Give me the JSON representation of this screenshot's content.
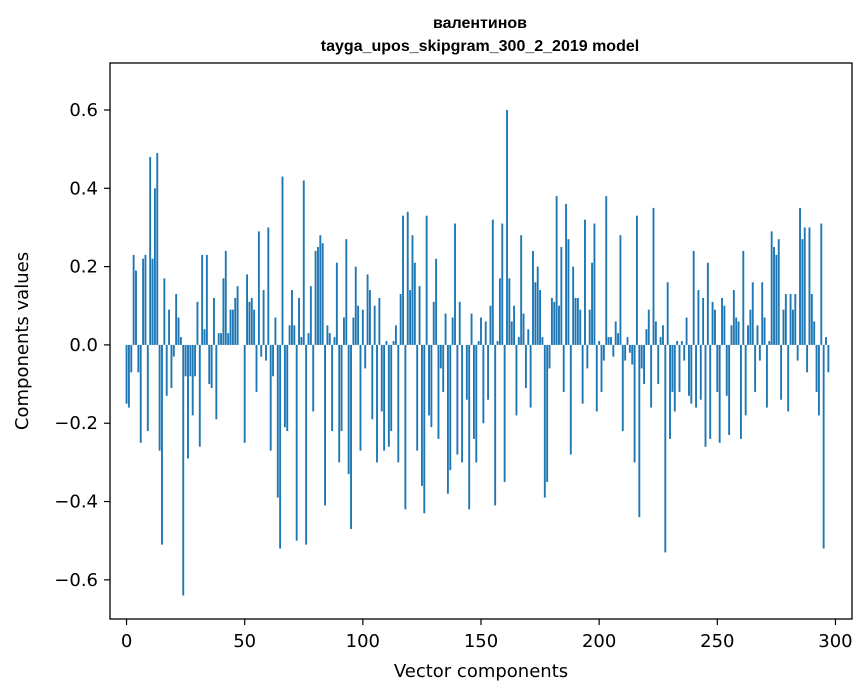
{
  "chart_data": {
    "type": "bar",
    "title": "валентинов",
    "subtitle": "tayga_upos_skipgram_300_2_2019 model",
    "xlabel": "Vector components",
    "ylabel": "Components values",
    "xlim": [
      -7,
      307
    ],
    "ylim": [
      -0.7,
      0.72
    ],
    "xticks": [
      0,
      50,
      100,
      150,
      200,
      250,
      300
    ],
    "xtick_labels": [
      "0",
      "50",
      "100",
      "150",
      "200",
      "250",
      "300"
    ],
    "yticks": [
      -0.6,
      -0.4,
      -0.2,
      0.0,
      0.2,
      0.4,
      0.6
    ],
    "ytick_labels": [
      "−0.6",
      "−0.4",
      "−0.2",
      "0.0",
      "0.2",
      "0.4",
      "0.6"
    ],
    "grid": false,
    "bar_color": "#1f77b4",
    "values": [
      -0.15,
      -0.16,
      -0.07,
      0.23,
      0.19,
      -0.07,
      -0.25,
      0.22,
      0.23,
      -0.22,
      0.48,
      0.22,
      0.4,
      0.49,
      -0.27,
      -0.51,
      0.17,
      -0.13,
      0.09,
      -0.11,
      -0.03,
      0.13,
      0.07,
      0.02,
      -0.64,
      -0.08,
      -0.29,
      -0.08,
      -0.18,
      -0.08,
      0.11,
      -0.26,
      0.23,
      0.04,
      0.23,
      -0.1,
      -0.11,
      0.12,
      -0.19,
      0.03,
      0.03,
      0.17,
      0.24,
      0.03,
      0.09,
      0.09,
      0.12,
      0.15,
      0.0,
      0.0,
      -0.25,
      0.18,
      0.11,
      0.12,
      0.09,
      -0.12,
      0.29,
      -0.03,
      0.14,
      -0.04,
      0.3,
      -0.27,
      -0.08,
      0.07,
      -0.39,
      -0.52,
      0.43,
      -0.21,
      -0.22,
      0.05,
      0.14,
      0.05,
      -0.5,
      0.12,
      0.02,
      0.42,
      -0.51,
      0.03,
      0.15,
      -0.17,
      0.24,
      0.25,
      0.28,
      0.26,
      -0.41,
      0.05,
      0.03,
      -0.22,
      0.02,
      0.21,
      -0.3,
      -0.22,
      0.07,
      0.27,
      -0.33,
      -0.47,
      0.07,
      0.2,
      0.1,
      -0.27,
      0.09,
      -0.06,
      0.18,
      0.14,
      -0.19,
      0.1,
      -0.3,
      0.12,
      -0.17,
      -0.27,
      0.01,
      -0.26,
      -0.22,
      0.01,
      0.05,
      -0.3,
      0.13,
      0.33,
      -0.42,
      0.34,
      0.14,
      0.28,
      0.21,
      -0.27,
      0.15,
      -0.36,
      -0.43,
      0.33,
      -0.18,
      -0.21,
      0.11,
      0.22,
      -0.24,
      -0.06,
      -0.12,
      0.08,
      -0.38,
      -0.32,
      0.07,
      0.31,
      -0.28,
      0.11,
      -0.3,
      0.0,
      -0.14,
      -0.42,
      0.08,
      -0.24,
      -0.3,
      0.01,
      0.07,
      -0.2,
      0.06,
      -0.14,
      0.1,
      0.32,
      -0.41,
      0.01,
      0.17,
      0.31,
      -0.35,
      0.6,
      0.17,
      0.06,
      0.1,
      -0.18,
      0.02,
      0.28,
      0.08,
      -0.11,
      0.04,
      -0.16,
      0.24,
      0.16,
      0.2,
      0.14,
      0.02,
      -0.39,
      -0.35,
      -0.06,
      0.12,
      0.11,
      0.38,
      0.1,
      0.25,
      -0.12,
      0.36,
      0.27,
      -0.28,
      0.2,
      0.12,
      0.12,
      0.09,
      -0.15,
      0.32,
      -0.06,
      0.09,
      0.21,
      0.31,
      -0.17,
      0.01,
      -0.12,
      -0.04,
      0.38,
      0.02,
      0.02,
      -0.03,
      0.06,
      0.03,
      0.28,
      -0.22,
      -0.04,
      0.02,
      -0.02,
      -0.05,
      -0.3,
      0.33,
      -0.44,
      -0.06,
      -0.1,
      0.04,
      0.09,
      -0.16,
      0.35,
      0.06,
      -0.1,
      0.02,
      0.05,
      -0.53,
      0.16,
      -0.24,
      -0.12,
      -0.17,
      0.01,
      -0.12,
      0.01,
      -0.04,
      0.07,
      -0.13,
      -0.15,
      0.24,
      -0.16,
      0.14,
      -0.14,
      0.12,
      -0.26,
      0.21,
      -0.24,
      0.11,
      0.09,
      -0.12,
      -0.25,
      0.12,
      0.1,
      -0.13,
      -0.23,
      0.05,
      0.14,
      0.07,
      0.06,
      -0.24,
      0.24,
      -0.18,
      0.05,
      0.09,
      0.16,
      -0.12,
      0.05,
      -0.04,
      0.16,
      0.07,
      -0.16,
      0.01,
      0.29,
      0.25,
      0.23,
      0.27,
      -0.14,
      0.09,
      0.13,
      -0.17,
      0.13,
      0.09,
      0.13,
      -0.04,
      0.35,
      0.27,
      0.3,
      -0.07,
      0.3,
      0.13,
      0.06,
      -0.12,
      -0.18,
      0.31,
      -0.52,
      0.02,
      -0.07,
      0.0,
      0.0
    ]
  }
}
